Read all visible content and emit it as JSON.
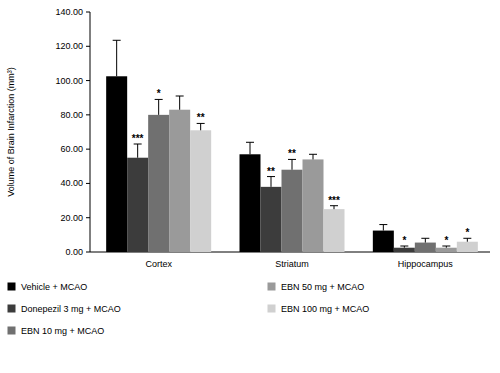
{
  "chart_data": {
    "type": "bar",
    "y_label": "Volume of Brain Infarction (mm³)",
    "categories": [
      "Cortex",
      "Striatum",
      "Hippocampus"
    ],
    "series": [
      {
        "name": "Vehicle + MCAO",
        "color": "#000000",
        "values": [
          102.5,
          57,
          12.5
        ],
        "errors": [
          21,
          7,
          3.5
        ],
        "significance": [
          null,
          null,
          null
        ]
      },
      {
        "name": "Donepezil 3 mg + MCAO",
        "color": "#3c3c3c",
        "values": [
          55,
          38,
          2.5
        ],
        "errors": [
          8,
          6,
          1
        ],
        "significance": [
          "***",
          "**",
          "*"
        ]
      },
      {
        "name": "EBN 10 mg + MCAO",
        "color": "#707070",
        "values": [
          80,
          48,
          5.5
        ],
        "errors": [
          9,
          6,
          2.5
        ],
        "significance": [
          "*",
          "**",
          null
        ]
      },
      {
        "name": "EBN 50 mg + MCAO",
        "color": "#9a9a9a",
        "values": [
          83,
          54,
          2.5
        ],
        "errors": [
          8,
          3,
          1
        ],
        "significance": [
          null,
          null,
          "*"
        ]
      },
      {
        "name": "EBN 100 mg + MCAO",
        "color": "#d0d0d0",
        "values": [
          71,
          25,
          6
        ],
        "errors": [
          4,
          2,
          2
        ],
        "significance": [
          "**",
          "***",
          "*"
        ]
      }
    ],
    "ylim": [
      0,
      140
    ],
    "yticks": [
      {
        "value": 0,
        "label": "0.00"
      },
      {
        "value": 20,
        "label": "20.00"
      },
      {
        "value": 40,
        "label": "40.00"
      },
      {
        "value": 60,
        "label": "60.00"
      },
      {
        "value": 80,
        "label": "80.00"
      },
      {
        "value": 100,
        "label": "100.00"
      },
      {
        "value": 120,
        "label": "120.00"
      },
      {
        "value": 140,
        "label": "140.00"
      }
    ],
    "grid": false,
    "legend": "bottom"
  }
}
